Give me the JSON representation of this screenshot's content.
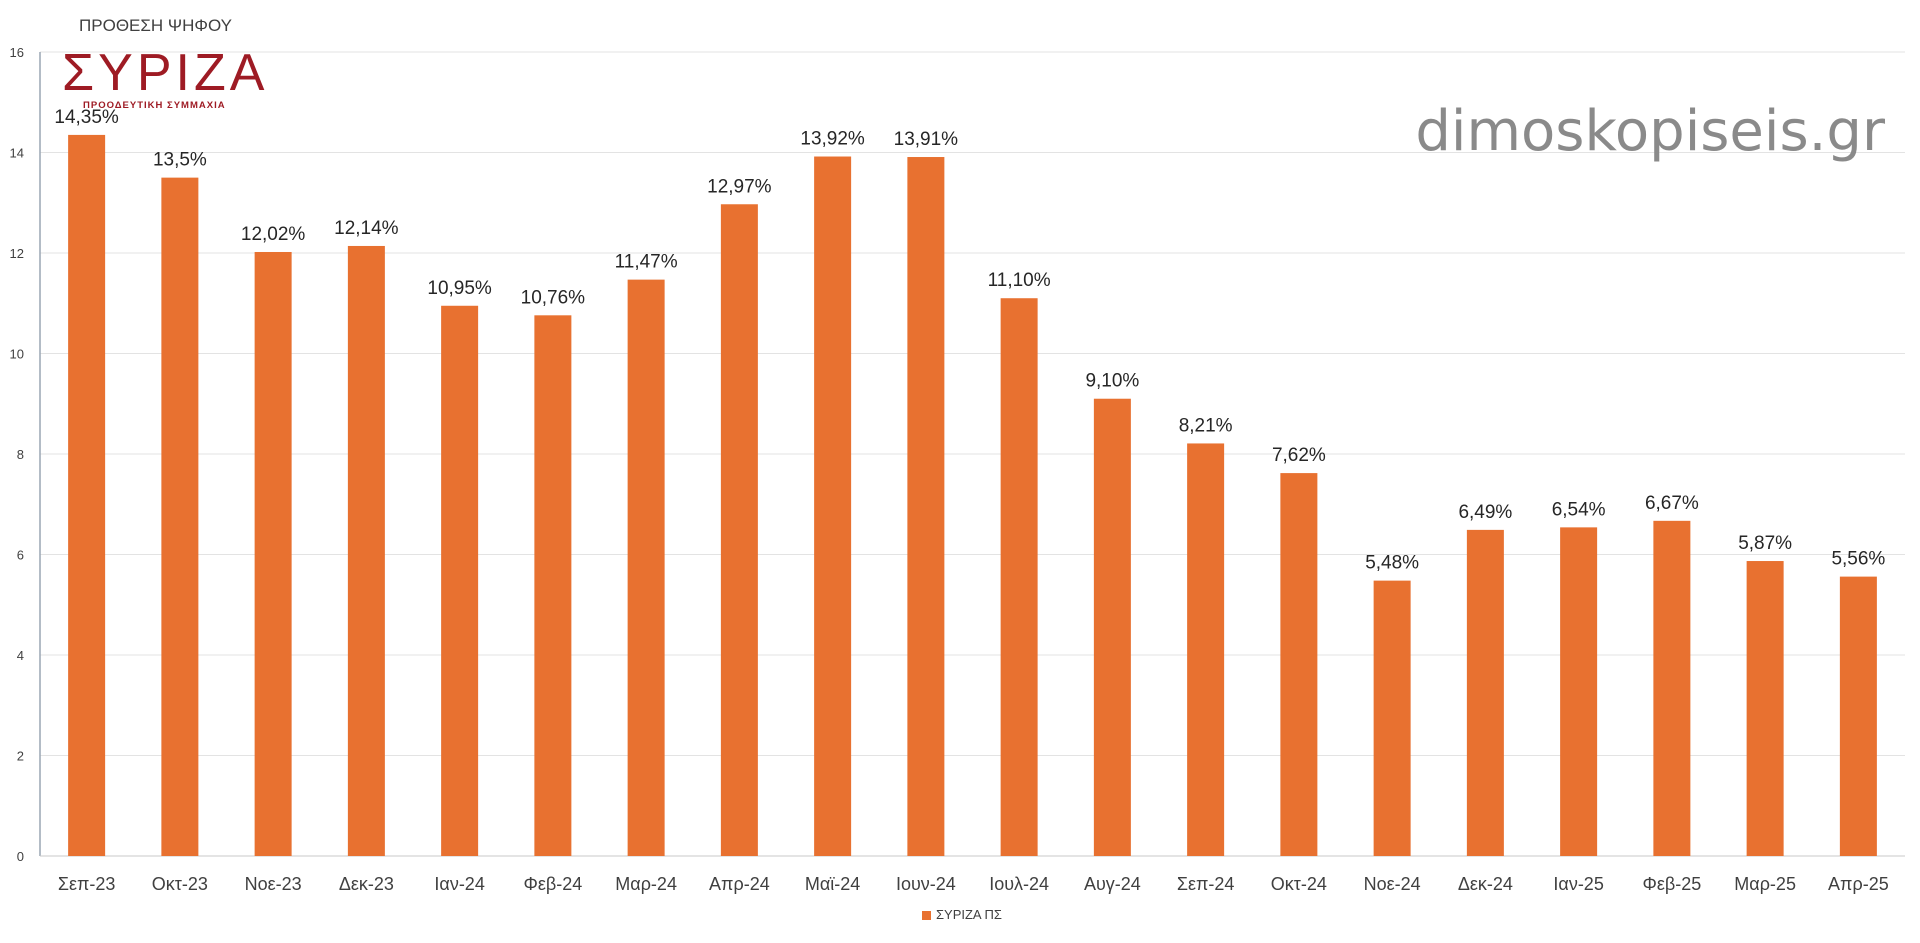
{
  "branding": {
    "logo_caption": "ΠΡΟΘΕΣΗ ΨΗΦΟΥ",
    "logo_text": "ΣΥΡΙΖΑ",
    "logo_subtitle": "ΠΡΟΟΔΕΥΤΙΚΗ ΣΥΜΜΑΧΙΑ",
    "logo_color": "#9e1b24",
    "watermark": "dimoskopiseis.gr",
    "watermark_color": "#8a8a8a"
  },
  "chart_data": {
    "type": "bar",
    "categories": [
      "Σεπ-23",
      "Οκτ-23",
      "Νοε-23",
      "Δεκ-23",
      "Ιαν-24",
      "Φεβ-24",
      "Μαρ-24",
      "Απρ-24",
      "Μαϊ-24",
      "Ιουν-24",
      "Ιουλ-24",
      "Αυγ-24",
      "Σεπ-24",
      "Οκτ-24",
      "Νοε-24",
      "Δεκ-24",
      "Ιαν-25",
      "Φεβ-25",
      "Μαρ-25",
      "Απρ-25"
    ],
    "series": [
      {
        "name": "ΣΥΡΙΖΑ ΠΣ",
        "color": "#e87130",
        "values": [
          14.35,
          13.5,
          12.02,
          12.14,
          10.95,
          10.76,
          11.47,
          12.97,
          13.92,
          13.91,
          11.1,
          9.1,
          8.21,
          7.62,
          5.48,
          6.49,
          6.54,
          6.67,
          5.87,
          5.56
        ],
        "labels": [
          "14,35%",
          "13,5%",
          "12,02%",
          "12,14%",
          "10,95%",
          "10,76%",
          "11,47%",
          "12,97%",
          "13,92%",
          "13,91%",
          "11,10%",
          "9,10%",
          "8,21%",
          "7,62%",
          "5,48%",
          "6,49%",
          "6,54%",
          "6,67%",
          "5,87%",
          "5,56%"
        ]
      }
    ],
    "yticks": [
      "0",
      "2",
      "4",
      "6",
      "8",
      "10",
      "12",
      "14",
      "16"
    ],
    "ylim": [
      0,
      16
    ],
    "grid": true,
    "legend": "bottom-center"
  }
}
